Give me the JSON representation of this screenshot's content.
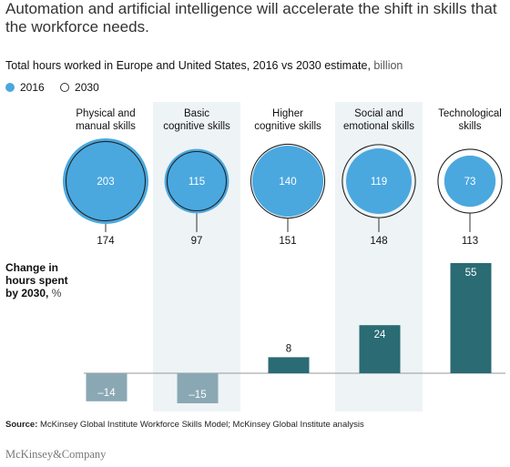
{
  "headline": "Automation and artificial intelligence will accelerate the shift in skills that the workforce needs.",
  "subtitle": {
    "text": "Total hours worked in Europe and United States, 2016 vs 2030 estimate,",
    "unit": "billion"
  },
  "legend": [
    {
      "label": "2016",
      "style": "filled",
      "color": "#4aa8df"
    },
    {
      "label": "2030",
      "style": "outline",
      "color": "#333333"
    }
  ],
  "change_label": {
    "line1": "Change in",
    "line2": "hours spent",
    "line3": "by 2030,",
    "unit": "%"
  },
  "source": {
    "label": "Source:",
    "text": "McKinsey Global Institute Workforce Skills Model; McKinsey Global Institute analysis"
  },
  "brand": "McKinsey&Company",
  "colors": {
    "circle_2016": "#4aa8df",
    "outline_2030": "#222222",
    "bar_negative": "#8aa8b4",
    "bar_positive": "#2a6b74",
    "shade": "#eef3f6"
  },
  "chart_data": {
    "type": "bubble-and-bar",
    "categories": [
      {
        "line1": "Physical and",
        "line2": "manual skills"
      },
      {
        "line1": "Basic",
        "line2": "cognitive skills"
      },
      {
        "line1": "Higher",
        "line2": "cognitive skills"
      },
      {
        "line1": "Social and",
        "line2": "emotional skills"
      },
      {
        "line1": "Technological",
        "line2": "skills"
      }
    ],
    "series": [
      {
        "name": "2016",
        "values": [
          203,
          115,
          140,
          119,
          73
        ]
      },
      {
        "name": "2030",
        "values": [
          174,
          97,
          151,
          148,
          113
        ]
      }
    ],
    "change_pct": [
      -14,
      -15,
      8,
      24,
      55
    ],
    "change_labels": [
      "–14",
      "–15",
      "8",
      "24",
      "55"
    ],
    "shaded_columns": [
      1,
      3
    ]
  }
}
